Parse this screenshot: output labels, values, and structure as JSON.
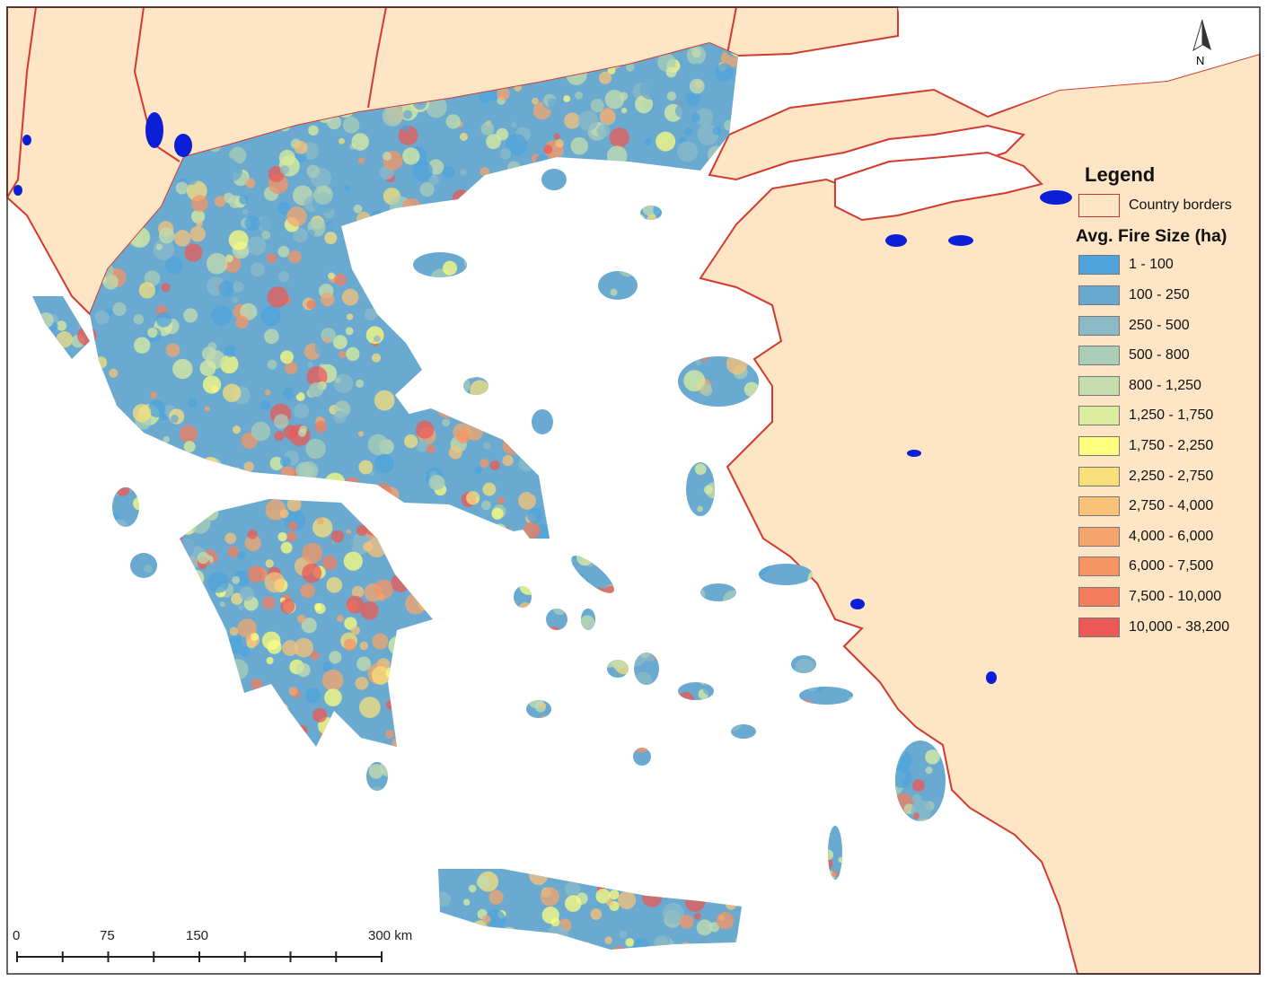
{
  "legend": {
    "title": "Legend",
    "border_label": "Country borders",
    "border_color": "#d23a2f",
    "fire_title": "Avg. Fire Size (ha)",
    "classes": [
      {
        "label": "1 - 100",
        "color": "#4fa3dc"
      },
      {
        "label": "100 - 250",
        "color": "#6aaad0"
      },
      {
        "label": "250 - 500",
        "color": "#8bb9c8"
      },
      {
        "label": "500 - 800",
        "color": "#a9cdb8"
      },
      {
        "label": "800 - 1,250",
        "color": "#c4dcae"
      },
      {
        "label": "1,250 - 1,750",
        "color": "#dcec9f"
      },
      {
        "label": "1,750 - 2,250",
        "color": "#fdfd7e"
      },
      {
        "label": "2,250 - 2,750",
        "color": "#f8df7b"
      },
      {
        "label": "2,750 - 4,000",
        "color": "#f8c278"
      },
      {
        "label": "4,000 - 6,000",
        "color": "#f6a66c"
      },
      {
        "label": "6,000 - 7,500",
        "color": "#f69464"
      },
      {
        "label": "7,500 - 10,000",
        "color": "#f27c5c"
      },
      {
        "label": "10,000 - 38,200",
        "color": "#ec5a56"
      }
    ]
  },
  "north_arrow": {
    "label": "N"
  },
  "scale_bar": {
    "labels": [
      "0",
      "75",
      "150",
      "300 km"
    ]
  },
  "colors": {
    "land": "#fde5c5",
    "sea": "#ffffff",
    "lakes": "#0a1fd6",
    "border": "#d23a2f"
  }
}
